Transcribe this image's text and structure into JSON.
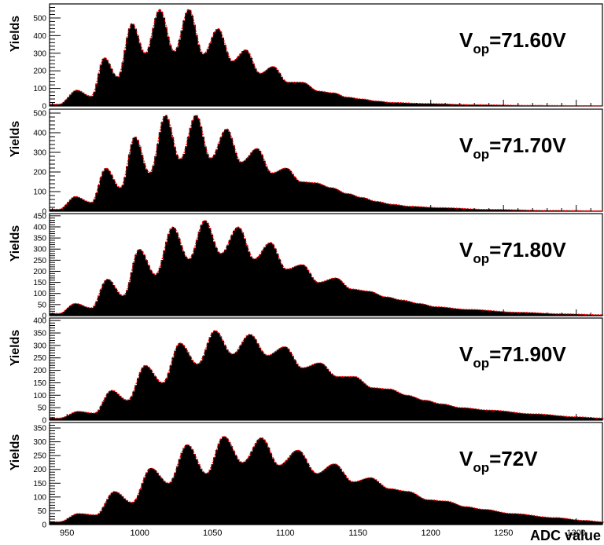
{
  "figure": {
    "xlabel": "ADC value",
    "x_ticks": [
      950,
      1000,
      1050,
      1100,
      1150,
      1200,
      1250,
      1300
    ],
    "xlim": [
      938,
      1318
    ]
  },
  "chart_data": [
    {
      "type": "area",
      "ylabel": "Yields",
      "annotation": {
        "main": "V",
        "sub": "op",
        "rest": "=71.60V"
      },
      "ylim": [
        0,
        580
      ],
      "y_ticks": [
        0,
        100,
        200,
        300,
        400,
        500
      ],
      "peaks": [
        {
          "x": 956,
          "y": 90
        },
        {
          "x": 975,
          "y": 275
        },
        {
          "x": 994,
          "y": 470
        },
        {
          "x": 1013,
          "y": 550
        },
        {
          "x": 1033,
          "y": 550
        },
        {
          "x": 1053,
          "y": 440
        },
        {
          "x": 1072,
          "y": 320
        },
        {
          "x": 1091,
          "y": 225
        },
        {
          "x": 1111,
          "y": 135
        },
        {
          "x": 1132,
          "y": 75
        },
        {
          "x": 1152,
          "y": 40
        },
        {
          "x": 1172,
          "y": 20
        }
      ],
      "valleys": [
        {
          "x": 944,
          "y": 10
        },
        {
          "x": 966,
          "y": 55
        },
        {
          "x": 984,
          "y": 165
        },
        {
          "x": 1003,
          "y": 300
        },
        {
          "x": 1023,
          "y": 310
        },
        {
          "x": 1043,
          "y": 295
        },
        {
          "x": 1063,
          "y": 255
        },
        {
          "x": 1082,
          "y": 185
        },
        {
          "x": 1101,
          "y": 135
        },
        {
          "x": 1122,
          "y": 85
        },
        {
          "x": 1142,
          "y": 50
        },
        {
          "x": 1162,
          "y": 28
        },
        {
          "x": 1195,
          "y": 14
        },
        {
          "x": 1230,
          "y": 7
        },
        {
          "x": 1270,
          "y": 3
        },
        {
          "x": 1317,
          "y": 1
        }
      ]
    },
    {
      "type": "area",
      "ylabel": "Yields",
      "annotation": {
        "main": "V",
        "sub": "op",
        "rest": "=71.70V"
      },
      "ylim": [
        0,
        520
      ],
      "y_ticks": [
        0,
        100,
        200,
        300,
        400,
        500
      ],
      "peaks": [
        {
          "x": 955,
          "y": 75
        },
        {
          "x": 976,
          "y": 220
        },
        {
          "x": 996,
          "y": 380
        },
        {
          "x": 1017,
          "y": 490
        },
        {
          "x": 1038,
          "y": 490
        },
        {
          "x": 1059,
          "y": 420
        },
        {
          "x": 1080,
          "y": 320
        },
        {
          "x": 1100,
          "y": 220
        },
        {
          "x": 1120,
          "y": 145
        },
        {
          "x": 1142,
          "y": 90
        },
        {
          "x": 1162,
          "y": 50
        },
        {
          "x": 1185,
          "y": 25
        }
      ],
      "valleys": [
        {
          "x": 944,
          "y": 10
        },
        {
          "x": 966,
          "y": 45
        },
        {
          "x": 986,
          "y": 120
        },
        {
          "x": 1006,
          "y": 195
        },
        {
          "x": 1027,
          "y": 265
        },
        {
          "x": 1048,
          "y": 270
        },
        {
          "x": 1069,
          "y": 250
        },
        {
          "x": 1090,
          "y": 195
        },
        {
          "x": 1110,
          "y": 150
        },
        {
          "x": 1131,
          "y": 120
        },
        {
          "x": 1152,
          "y": 70
        },
        {
          "x": 1173,
          "y": 35
        },
        {
          "x": 1205,
          "y": 18
        },
        {
          "x": 1240,
          "y": 9
        },
        {
          "x": 1280,
          "y": 4
        },
        {
          "x": 1317,
          "y": 2
        }
      ]
    },
    {
      "type": "area",
      "ylabel": "Yields",
      "annotation": {
        "main": "V",
        "sub": "op",
        "rest": "=71.80V"
      },
      "ylim": [
        0,
        460
      ],
      "y_ticks": [
        0,
        50,
        100,
        150,
        200,
        250,
        300,
        350,
        400,
        450
      ],
      "peaks": [
        {
          "x": 955,
          "y": 55
        },
        {
          "x": 977,
          "y": 165
        },
        {
          "x": 999,
          "y": 300
        },
        {
          "x": 1022,
          "y": 400
        },
        {
          "x": 1044,
          "y": 430
        },
        {
          "x": 1067,
          "y": 400
        },
        {
          "x": 1089,
          "y": 330
        },
        {
          "x": 1111,
          "y": 230
        },
        {
          "x": 1134,
          "y": 170
        },
        {
          "x": 1157,
          "y": 110
        },
        {
          "x": 1180,
          "y": 70
        },
        {
          "x": 1203,
          "y": 40
        }
      ],
      "valleys": [
        {
          "x": 944,
          "y": 10
        },
        {
          "x": 966,
          "y": 35
        },
        {
          "x": 988,
          "y": 90
        },
        {
          "x": 1010,
          "y": 185
        },
        {
          "x": 1033,
          "y": 255
        },
        {
          "x": 1055,
          "y": 280
        },
        {
          "x": 1078,
          "y": 255
        },
        {
          "x": 1100,
          "y": 210
        },
        {
          "x": 1122,
          "y": 150
        },
        {
          "x": 1145,
          "y": 120
        },
        {
          "x": 1168,
          "y": 85
        },
        {
          "x": 1191,
          "y": 55
        },
        {
          "x": 1225,
          "y": 28
        },
        {
          "x": 1260,
          "y": 15
        },
        {
          "x": 1290,
          "y": 8
        },
        {
          "x": 1317,
          "y": 4
        }
      ]
    },
    {
      "type": "area",
      "ylabel": "Yields",
      "annotation": {
        "main": "V",
        "sub": "op",
        "rest": "=71.90V"
      },
      "ylim": [
        0,
        410
      ],
      "y_ticks": [
        0,
        50,
        100,
        150,
        200,
        250,
        300,
        350,
        400
      ],
      "peaks": [
        {
          "x": 957,
          "y": 35
        },
        {
          "x": 980,
          "y": 120
        },
        {
          "x": 1003,
          "y": 220
        },
        {
          "x": 1027,
          "y": 310
        },
        {
          "x": 1051,
          "y": 360
        },
        {
          "x": 1075,
          "y": 345
        },
        {
          "x": 1099,
          "y": 295
        },
        {
          "x": 1123,
          "y": 230
        },
        {
          "x": 1147,
          "y": 175
        },
        {
          "x": 1171,
          "y": 125
        },
        {
          "x": 1195,
          "y": 80
        },
        {
          "x": 1220,
          "y": 50
        }
      ],
      "valleys": [
        {
          "x": 944,
          "y": 8
        },
        {
          "x": 968,
          "y": 28
        },
        {
          "x": 991,
          "y": 80
        },
        {
          "x": 1015,
          "y": 150
        },
        {
          "x": 1039,
          "y": 225
        },
        {
          "x": 1063,
          "y": 265
        },
        {
          "x": 1087,
          "y": 260
        },
        {
          "x": 1111,
          "y": 210
        },
        {
          "x": 1135,
          "y": 175
        },
        {
          "x": 1159,
          "y": 130
        },
        {
          "x": 1183,
          "y": 100
        },
        {
          "x": 1207,
          "y": 65
        },
        {
          "x": 1240,
          "y": 40
        },
        {
          "x": 1270,
          "y": 25
        },
        {
          "x": 1300,
          "y": 13
        },
        {
          "x": 1317,
          "y": 8
        }
      ]
    },
    {
      "type": "area",
      "ylabel": "Yields",
      "annotation": {
        "main": "V",
        "sub": "op",
        "rest": "=72V"
      },
      "ylim": [
        0,
        370
      ],
      "y_ticks": [
        0,
        50,
        100,
        150,
        200,
        250,
        300,
        350
      ],
      "peaks": [
        {
          "x": 957,
          "y": 40
        },
        {
          "x": 982,
          "y": 120
        },
        {
          "x": 1007,
          "y": 205
        },
        {
          "x": 1032,
          "y": 290
        },
        {
          "x": 1057,
          "y": 320
        },
        {
          "x": 1083,
          "y": 315
        },
        {
          "x": 1108,
          "y": 270
        },
        {
          "x": 1133,
          "y": 220
        },
        {
          "x": 1158,
          "y": 170
        },
        {
          "x": 1184,
          "y": 120
        },
        {
          "x": 1210,
          "y": 85
        },
        {
          "x": 1236,
          "y": 55
        }
      ],
      "valleys": [
        {
          "x": 944,
          "y": 10
        },
        {
          "x": 969,
          "y": 35
        },
        {
          "x": 994,
          "y": 80
        },
        {
          "x": 1019,
          "y": 150
        },
        {
          "x": 1045,
          "y": 185
        },
        {
          "x": 1070,
          "y": 225
        },
        {
          "x": 1095,
          "y": 215
        },
        {
          "x": 1121,
          "y": 185
        },
        {
          "x": 1146,
          "y": 155
        },
        {
          "x": 1171,
          "y": 130
        },
        {
          "x": 1197,
          "y": 90
        },
        {
          "x": 1223,
          "y": 65
        },
        {
          "x": 1255,
          "y": 40
        },
        {
          "x": 1285,
          "y": 25
        },
        {
          "x": 1305,
          "y": 15
        },
        {
          "x": 1317,
          "y": 10
        }
      ]
    }
  ]
}
